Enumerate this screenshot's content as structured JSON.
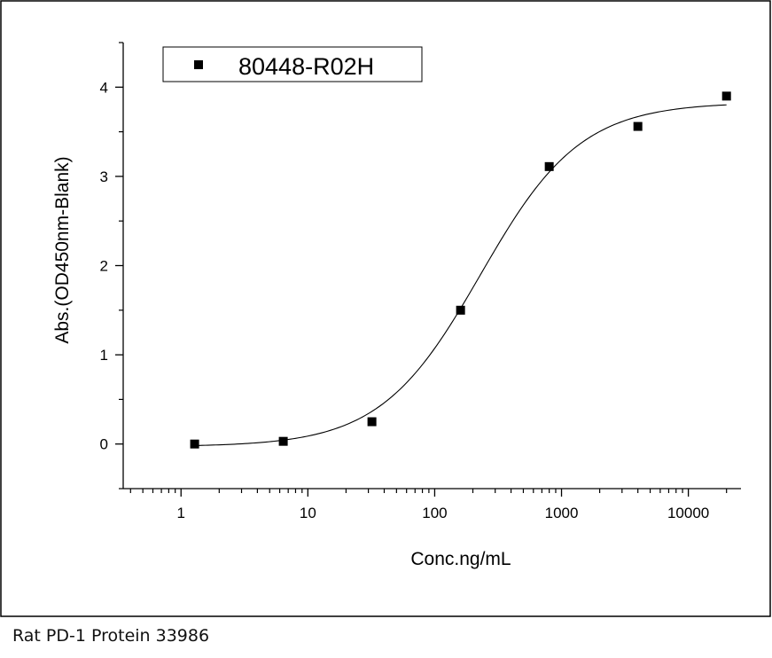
{
  "caption": "Rat PD-1 Protein 33986",
  "chart_data": {
    "type": "scatter",
    "title": "",
    "xlabel": "Conc.ng/mL",
    "ylabel": "Abs.(OD450nm-Blank)",
    "x_scale": "log",
    "xlim": [
      0.35,
      26000
    ],
    "ylim": [
      -0.5,
      4.5
    ],
    "x_ticks": [
      1,
      10,
      100,
      1000,
      10000
    ],
    "x_tick_labels": [
      "1",
      "10",
      "100",
      "1000",
      "10000"
    ],
    "y_ticks": [
      0,
      1,
      2,
      3,
      4
    ],
    "y_tick_labels": [
      "0",
      "1",
      "2",
      "3",
      "4"
    ],
    "grid": false,
    "legend_position": "top-left",
    "series": [
      {
        "name": "80448-R02H",
        "marker": "square",
        "color": "#000000",
        "x": [
          1.28,
          6.4,
          32,
          160,
          800,
          4000,
          20000
        ],
        "y": [
          0.0,
          0.03,
          0.25,
          1.5,
          3.11,
          3.56,
          3.9
        ]
      }
    ],
    "fit_curve": {
      "type": "4PL",
      "color": "#000000",
      "bottom": -0.03,
      "top": 3.83,
      "ec50": 230,
      "hill": 1.1
    }
  }
}
